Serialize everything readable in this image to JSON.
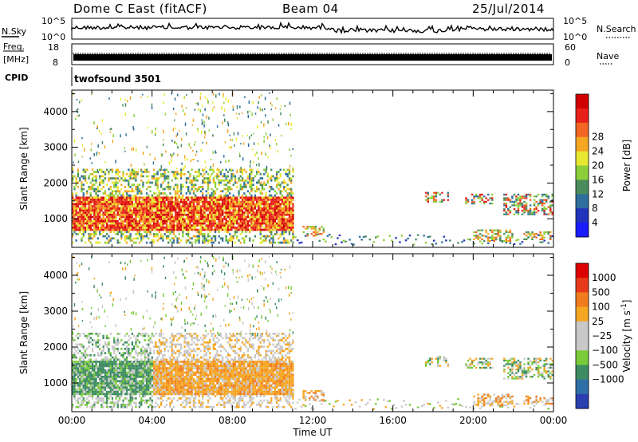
{
  "header": {
    "station": "Dome C East (fitACF)",
    "beam": "Beam 04",
    "date": "25/Jul/2014"
  },
  "top_panels": {
    "nsky_label": "N.Sky",
    "nsky_ticks": [
      "10^5",
      "10^0"
    ],
    "nsearch_label": "N.Search",
    "nsearch_ticks": [
      "10^5",
      "10^0"
    ],
    "freq_label": "Freq.",
    "freq_unit": "[MHz]",
    "freq_ticks": [
      "18",
      "8"
    ],
    "nave_label": "Nave",
    "nave_ticks": [
      "60",
      "0"
    ],
    "cpid_label": "CPID",
    "cpid_value": "twofsound 3501"
  },
  "chart_data": [
    {
      "type": "heatmap",
      "name": "power",
      "ylabel": "Slant Range [km]",
      "ylim": [
        200,
        4600
      ],
      "yticks": [
        "1000",
        "2000",
        "3000",
        "4000"
      ],
      "xticks": [
        "00:00",
        "04:00",
        "08:00",
        "12:00",
        "16:00",
        "20:00",
        "00:00"
      ],
      "colorbar_label": "Power [dB]",
      "colorbar_ticks": [
        "4",
        "8",
        "12",
        "16",
        "20",
        "24",
        "28"
      ],
      "colorbar_colors": [
        "#1a1aff",
        "#2233bb",
        "#2e6f9e",
        "#4a8c5c",
        "#8ccf3a",
        "#e8e830",
        "#f5a623",
        "#f26522",
        "#e8201a",
        "#d00000"
      ]
    },
    {
      "type": "heatmap",
      "name": "velocity",
      "ylabel": "Slant Range [km]",
      "ylim": [
        200,
        4600
      ],
      "yticks": [
        "1000",
        "2000",
        "3000",
        "4000"
      ],
      "xticks": [
        "00:00",
        "04:00",
        "08:00",
        "12:00",
        "16:00",
        "20:00",
        "00:00"
      ],
      "xlabel": "Time UT",
      "colorbar_label": "Velocity [m s",
      "colorbar_label_sup": "-1",
      "colorbar_label_end": "]",
      "colorbar_ticks": [
        "1000",
        "500",
        "100",
        "25",
        "−25",
        "−100",
        "−500",
        "−1000"
      ],
      "colorbar_colors": [
        "#2a3fb0",
        "#2f6fa8",
        "#3d8c62",
        "#7acb3a",
        "#c8c8c8",
        "#c8c8c8",
        "#f5a623",
        "#f27b1e",
        "#e83a1a",
        "#dd0000"
      ]
    }
  ]
}
